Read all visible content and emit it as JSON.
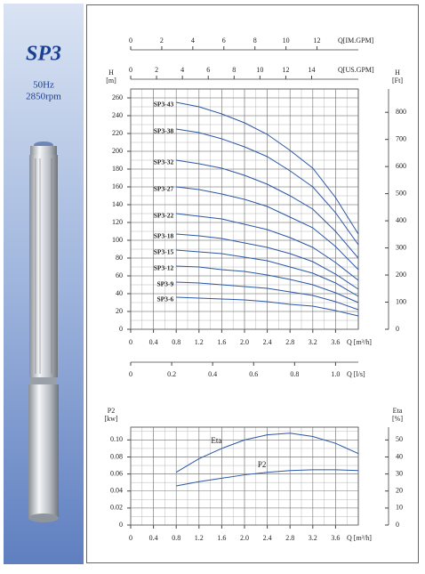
{
  "product": {
    "model": "SP3",
    "frequency": "50Hz",
    "speed": "2850rpm"
  },
  "chart_data": [
    {
      "type": "line",
      "ylabel": "H",
      "yunit": "[m]",
      "y2label": "H",
      "y2unit": "[Ft]",
      "xlabel": "Q [m³/h]",
      "xlim": [
        0,
        4
      ],
      "xticks": [
        0,
        0.4,
        0.8,
        1.2,
        1.6,
        {
          "value": 2,
          "label": "2.0"
        },
        2.4,
        2.8,
        3.2,
        3.6
      ],
      "ylim": [
        0,
        270
      ],
      "yticks": [
        0,
        20,
        40,
        60,
        80,
        100,
        120,
        140,
        160,
        180,
        200,
        220,
        240,
        260
      ],
      "y2lim": [
        0,
        886
      ],
      "y2ticks": [
        0,
        100,
        200,
        300,
        400,
        500,
        600,
        700,
        800
      ],
      "extra_x_axes": [
        {
          "label": "Q[IM.GPM]",
          "lim": [
            0,
            14.66
          ],
          "ticks": [
            0,
            2,
            4,
            6,
            8,
            10,
            12
          ]
        },
        {
          "label": "Q[US.GPM]",
          "lim": [
            0,
            17.61
          ],
          "ticks": [
            0,
            2,
            4,
            6,
            8,
            10,
            12,
            14
          ]
        },
        {
          "label": "Q [l/s]",
          "lim": [
            0,
            1.111
          ],
          "ticks": [
            0,
            0.2,
            0.4,
            0.6,
            0.8,
            {
              "value": 1,
              "label": "1.0"
            }
          ]
        }
      ],
      "grid": true,
      "minor_grid": {
        "x": 0.2,
        "y": 10
      },
      "x": [
        0.8,
        1.2,
        1.6,
        2.0,
        2.4,
        2.8,
        3.2,
        3.6,
        4.0
      ],
      "series": [
        {
          "name": "SP3-43",
          "color": "#2b57a5",
          "values": [
            255,
            250,
            242,
            232,
            219,
            201,
            181,
            148,
            107
          ]
        },
        {
          "name": "SP3-38",
          "color": "#2b57a5",
          "values": [
            225,
            221,
            214,
            205,
            194,
            178,
            160,
            131,
            95
          ]
        },
        {
          "name": "SP3-32",
          "color": "#2b57a5",
          "values": [
            190,
            186,
            181,
            173,
            163,
            150,
            135,
            110,
            80
          ]
        },
        {
          "name": "SP3-27",
          "color": "#2b57a5",
          "values": [
            160,
            157,
            152,
            146,
            138,
            126,
            114,
            93,
            67
          ]
        },
        {
          "name": "SP3-22",
          "color": "#2b57a5",
          "values": [
            130,
            127,
            124,
            118,
            112,
            103,
            92,
            75,
            55
          ]
        },
        {
          "name": "SP3-18",
          "color": "#2b57a5",
          "values": [
            107,
            105,
            102,
            97,
            92,
            85,
            76,
            62,
            45
          ]
        },
        {
          "name": "SP3-15",
          "color": "#2b57a5",
          "values": [
            89,
            87,
            85,
            81,
            77,
            70,
            63,
            52,
            37
          ]
        },
        {
          "name": "SP3-12",
          "color": "#2b57a5",
          "values": [
            71,
            70,
            67,
            65,
            61,
            56,
            50,
            41,
            30
          ]
        },
        {
          "name": "SP3-9",
          "color": "#2b57a5",
          "values": [
            53,
            52,
            50,
            48,
            46,
            42,
            38,
            31,
            22
          ]
        },
        {
          "name": "SP3-6",
          "color": "#2b57a5",
          "values": [
            36,
            35,
            34,
            33,
            31,
            28,
            26,
            21,
            15
          ]
        }
      ]
    },
    {
      "type": "line",
      "ylabel": "P2",
      "yunit": "[kw]",
      "y2label": "Eta",
      "y2unit": "[%]",
      "xlabel": "Q [m³/h]",
      "xlim": [
        0,
        4
      ],
      "xticks": [
        0,
        0.4,
        0.8,
        1.2,
        1.6,
        {
          "value": 2,
          "label": "2.0"
        },
        2.4,
        2.8,
        3.2,
        3.6
      ],
      "ylim": [
        0,
        0.115
      ],
      "yticks": [
        0,
        0.02,
        0.04,
        0.06,
        0.08,
        {
          "value": 0.1,
          "label": "0.10"
        }
      ],
      "y2lim": [
        0,
        57.5
      ],
      "y2ticks": [
        0,
        10,
        20,
        30,
        40,
        50
      ],
      "grid": true,
      "minor_grid": {
        "x": 0.2,
        "y": 0.01
      },
      "x": [
        0.8,
        1.2,
        1.6,
        2.0,
        2.4,
        2.8,
        3.2,
        3.6,
        4.0
      ],
      "series": [
        {
          "name": "Eta",
          "color": "#2b57a5",
          "axis": "y2",
          "values": [
            31,
            39,
            45,
            50,
            53,
            54,
            52,
            48,
            42
          ]
        },
        {
          "name": "P2",
          "color": "#2b57a5",
          "values": [
            0.046,
            0.051,
            0.055,
            0.059,
            0.062,
            0.064,
            0.065,
            0.065,
            0.064
          ]
        }
      ]
    }
  ]
}
